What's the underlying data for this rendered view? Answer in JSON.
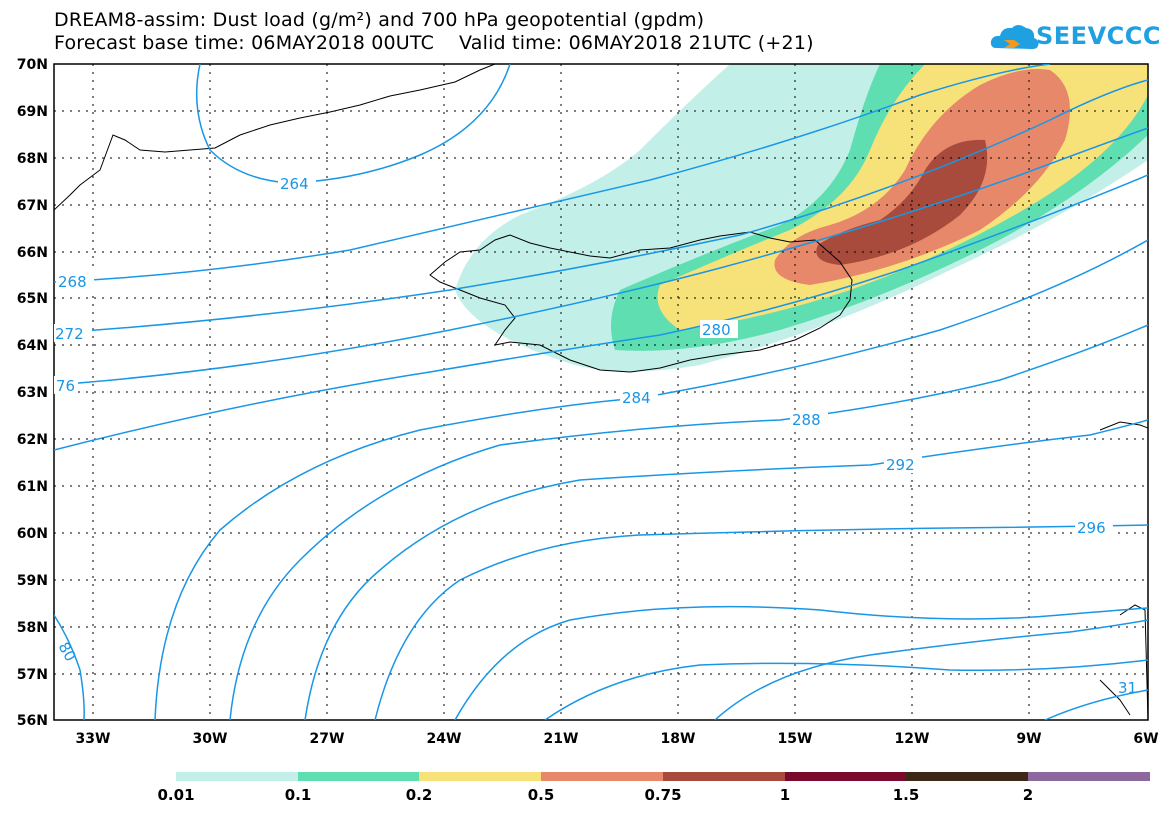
{
  "header": {
    "title_line1": "DREAM8-assim: Dust load (g/m²) and 700 hPa geopotential (gpdm)",
    "title_line2": "Forecast base time: 06MAY2018 00UTC    Valid time: 06MAY2018 21UTC (+21)"
  },
  "logo": {
    "text": "SEEVCCC",
    "icon": "cloud-icon",
    "color": "#1fa0e0"
  },
  "map": {
    "lat_labels": [
      "70N",
      "69N",
      "68N",
      "67N",
      "66N",
      "65N",
      "64N",
      "63N",
      "62N",
      "61N",
      "60N",
      "59N",
      "58N",
      "57N",
      "56N"
    ],
    "lon_labels": [
      "33W",
      "30W",
      "27W",
      "24W",
      "21W",
      "18W",
      "15W",
      "12W",
      "9W",
      "6W"
    ],
    "contour_color": "#1996e6",
    "contour_labels": [
      "264",
      "268",
      "272",
      "76",
      "280",
      "284",
      "288",
      "292",
      "296",
      "80",
      "31"
    ]
  },
  "colorbar": {
    "colors": [
      "#c2f0e9",
      "#5fdeb2",
      "#f7e27a",
      "#e8886a",
      "#a84a3c",
      "#7a0a2c",
      "#3d2818",
      "#8d689e"
    ],
    "labels": [
      "0.01",
      "0.1",
      "0.2",
      "0.5",
      "0.75",
      "1",
      "1.5",
      "2"
    ]
  }
}
